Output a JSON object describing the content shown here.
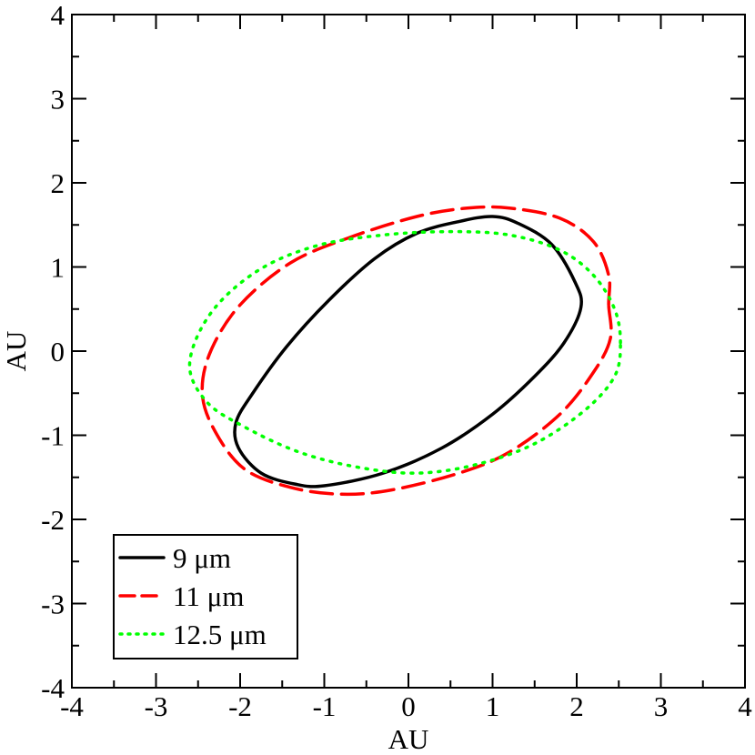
{
  "chart_data": {
    "type": "line",
    "xlabel": "AU",
    "ylabel": "AU",
    "xlim": [
      -4,
      4
    ],
    "ylim": [
      -4,
      4
    ],
    "x_ticks": [
      "-4",
      "-3",
      "-2",
      "-1",
      "0",
      "1",
      "2",
      "3",
      "4"
    ],
    "y_ticks": [
      "-4",
      "-3",
      "-2",
      "-1",
      "0",
      "1",
      "2",
      "3",
      "4"
    ],
    "grid": false,
    "legend_position": "bottom-left",
    "series": [
      {
        "name": "9 μm",
        "color": "#000000",
        "dash": "solid",
        "points": [
          [
            2.05,
            0.52
          ],
          [
            1.98,
            0.82
          ],
          [
            1.7,
            1.27
          ],
          [
            1.3,
            1.52
          ],
          [
            1.0,
            1.6
          ],
          [
            0.6,
            1.54
          ],
          [
            0.1,
            1.4
          ],
          [
            -0.4,
            1.1
          ],
          [
            -0.95,
            0.6
          ],
          [
            -1.45,
            0.05
          ],
          [
            -1.85,
            -0.5
          ],
          [
            -2.05,
            -0.85
          ],
          [
            -2.02,
            -1.15
          ],
          [
            -1.75,
            -1.45
          ],
          [
            -1.35,
            -1.58
          ],
          [
            -1.0,
            -1.6
          ],
          [
            -0.3,
            -1.45
          ],
          [
            0.4,
            -1.15
          ],
          [
            1.0,
            -0.75
          ],
          [
            1.5,
            -0.3
          ],
          [
            1.85,
            0.1
          ],
          [
            2.05,
            0.52
          ]
        ]
      },
      {
        "name": "11 μm",
        "color": "#ff0000",
        "dash": "dashed",
        "points": [
          [
            2.38,
            0.55
          ],
          [
            2.38,
            0.9
          ],
          [
            2.2,
            1.3
          ],
          [
            1.8,
            1.58
          ],
          [
            1.2,
            1.7
          ],
          [
            0.7,
            1.7
          ],
          [
            0.1,
            1.6
          ],
          [
            -0.7,
            1.35
          ],
          [
            -1.4,
            1.05
          ],
          [
            -2.0,
            0.55
          ],
          [
            -2.35,
            0.0
          ],
          [
            -2.45,
            -0.5
          ],
          [
            -2.3,
            -0.95
          ],
          [
            -1.95,
            -1.4
          ],
          [
            -1.4,
            -1.62
          ],
          [
            -0.8,
            -1.7
          ],
          [
            -0.2,
            -1.65
          ],
          [
            0.6,
            -1.45
          ],
          [
            1.2,
            -1.2
          ],
          [
            1.8,
            -0.75
          ],
          [
            2.2,
            -0.25
          ],
          [
            2.4,
            0.15
          ],
          [
            2.38,
            0.55
          ]
        ]
      },
      {
        "name": "12.5 μm",
        "color": "#00ff00",
        "dash": "dotted",
        "points": [
          [
            2.52,
            0.1
          ],
          [
            2.45,
            0.5
          ],
          [
            2.2,
            0.9
          ],
          [
            1.8,
            1.2
          ],
          [
            1.2,
            1.38
          ],
          [
            0.5,
            1.42
          ],
          [
            -0.3,
            1.38
          ],
          [
            -1.1,
            1.25
          ],
          [
            -1.8,
            0.95
          ],
          [
            -2.35,
            0.45
          ],
          [
            -2.6,
            -0.15
          ],
          [
            -2.4,
            -0.6
          ],
          [
            -1.95,
            -0.9
          ],
          [
            -1.3,
            -1.2
          ],
          [
            -0.6,
            -1.38
          ],
          [
            0.1,
            -1.45
          ],
          [
            0.8,
            -1.35
          ],
          [
            1.5,
            -1.1
          ],
          [
            2.1,
            -0.7
          ],
          [
            2.45,
            -0.3
          ],
          [
            2.52,
            0.1
          ]
        ]
      }
    ]
  }
}
